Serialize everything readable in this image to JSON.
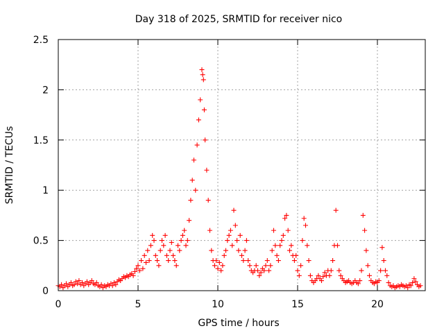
{
  "chart_data": {
    "type": "scatter",
    "title": "Day 318 of 2025, SRMTID for receiver nico",
    "xlabel": "GPS time / hours",
    "ylabel": "SRMTID / TECUs",
    "xlim": [
      0,
      23
    ],
    "ylim": [
      0,
      2.5
    ],
    "x_ticks": [
      0,
      5,
      10,
      15,
      20
    ],
    "x_tick_labels": [
      "0",
      "5",
      "10",
      "15",
      "20"
    ],
    "y_ticks": [
      0,
      0.5,
      1,
      1.5,
      2,
      2.5
    ],
    "y_tick_labels": [
      "0",
      "0.5",
      "1",
      "1.5",
      "2",
      "2.5"
    ],
    "grid": true,
    "marker": "+",
    "colors": {
      "series": "#ff0000",
      "grid": "#a0a0a0",
      "frame": "#000000"
    },
    "series": [
      {
        "name": "SRMTID",
        "points": [
          [
            0.0,
            0.05
          ],
          [
            0.1,
            0.04
          ],
          [
            0.2,
            0.06
          ],
          [
            0.3,
            0.03
          ],
          [
            0.4,
            0.05
          ],
          [
            0.5,
            0.07
          ],
          [
            0.6,
            0.04
          ],
          [
            0.7,
            0.06
          ],
          [
            0.8,
            0.08
          ],
          [
            0.9,
            0.05
          ],
          [
            1.0,
            0.06
          ],
          [
            1.1,
            0.09
          ],
          [
            1.2,
            0.07
          ],
          [
            1.3,
            0.1
          ],
          [
            1.4,
            0.06
          ],
          [
            1.5,
            0.08
          ],
          [
            1.6,
            0.05
          ],
          [
            1.7,
            0.07
          ],
          [
            1.8,
            0.09
          ],
          [
            1.9,
            0.06
          ],
          [
            2.0,
            0.08
          ],
          [
            2.1,
            0.1
          ],
          [
            2.2,
            0.07
          ],
          [
            2.3,
            0.06
          ],
          [
            2.4,
            0.08
          ],
          [
            2.5,
            0.05
          ],
          [
            2.6,
            0.04
          ],
          [
            2.7,
            0.06
          ],
          [
            2.8,
            0.03
          ],
          [
            2.9,
            0.05
          ],
          [
            3.0,
            0.04
          ],
          [
            3.1,
            0.06
          ],
          [
            3.2,
            0.05
          ],
          [
            3.3,
            0.07
          ],
          [
            3.4,
            0.05
          ],
          [
            3.5,
            0.08
          ],
          [
            3.6,
            0.06
          ],
          [
            3.7,
            0.09
          ],
          [
            3.8,
            0.11
          ],
          [
            3.9,
            0.1
          ],
          [
            4.0,
            0.12
          ],
          [
            4.1,
            0.14
          ],
          [
            4.2,
            0.13
          ],
          [
            4.3,
            0.15
          ],
          [
            4.4,
            0.14
          ],
          [
            4.5,
            0.16
          ],
          [
            4.6,
            0.17
          ],
          [
            4.7,
            0.15
          ],
          [
            4.8,
            0.19
          ],
          [
            4.9,
            0.22
          ],
          [
            5.0,
            0.25
          ],
          [
            5.1,
            0.2
          ],
          [
            5.2,
            0.3
          ],
          [
            5.3,
            0.22
          ],
          [
            5.4,
            0.35
          ],
          [
            5.5,
            0.28
          ],
          [
            5.6,
            0.4
          ],
          [
            5.7,
            0.3
          ],
          [
            5.8,
            0.45
          ],
          [
            5.9,
            0.55
          ],
          [
            6.0,
            0.5
          ],
          [
            6.1,
            0.35
          ],
          [
            6.2,
            0.3
          ],
          [
            6.3,
            0.25
          ],
          [
            6.4,
            0.4
          ],
          [
            6.5,
            0.5
          ],
          [
            6.6,
            0.45
          ],
          [
            6.7,
            0.55
          ],
          [
            6.8,
            0.35
          ],
          [
            6.9,
            0.3
          ],
          [
            7.0,
            0.4
          ],
          [
            7.1,
            0.48
          ],
          [
            7.2,
            0.35
          ],
          [
            7.3,
            0.3
          ],
          [
            7.4,
            0.25
          ],
          [
            7.5,
            0.45
          ],
          [
            7.6,
            0.4
          ],
          [
            7.7,
            0.5
          ],
          [
            7.8,
            0.55
          ],
          [
            7.9,
            0.6
          ],
          [
            8.0,
            0.45
          ],
          [
            8.1,
            0.5
          ],
          [
            8.2,
            0.7
          ],
          [
            8.3,
            0.9
          ],
          [
            8.4,
            1.1
          ],
          [
            8.5,
            1.3
          ],
          [
            8.6,
            1.0
          ],
          [
            8.7,
            1.45
          ],
          [
            8.8,
            1.7
          ],
          [
            8.9,
            1.9
          ],
          [
            9.0,
            2.2
          ],
          [
            9.05,
            2.15
          ],
          [
            9.1,
            2.1
          ],
          [
            9.15,
            1.8
          ],
          [
            9.2,
            1.5
          ],
          [
            9.3,
            1.2
          ],
          [
            9.4,
            0.9
          ],
          [
            9.5,
            0.6
          ],
          [
            9.6,
            0.4
          ],
          [
            9.7,
            0.3
          ],
          [
            9.8,
            0.25
          ],
          [
            9.9,
            0.3
          ],
          [
            10.0,
            0.22
          ],
          [
            10.1,
            0.28
          ],
          [
            10.2,
            0.2
          ],
          [
            10.3,
            0.25
          ],
          [
            10.4,
            0.35
          ],
          [
            10.5,
            0.4
          ],
          [
            10.6,
            0.5
          ],
          [
            10.7,
            0.55
          ],
          [
            10.8,
            0.6
          ],
          [
            10.9,
            0.45
          ],
          [
            11.0,
            0.8
          ],
          [
            11.1,
            0.65
          ],
          [
            11.2,
            0.5
          ],
          [
            11.3,
            0.4
          ],
          [
            11.4,
            0.55
          ],
          [
            11.5,
            0.35
          ],
          [
            11.6,
            0.3
          ],
          [
            11.7,
            0.4
          ],
          [
            11.8,
            0.5
          ],
          [
            11.9,
            0.3
          ],
          [
            12.0,
            0.25
          ],
          [
            12.1,
            0.2
          ],
          [
            12.2,
            0.18
          ],
          [
            12.3,
            0.2
          ],
          [
            12.4,
            0.25
          ],
          [
            12.5,
            0.2
          ],
          [
            12.6,
            0.15
          ],
          [
            12.7,
            0.18
          ],
          [
            12.8,
            0.22
          ],
          [
            12.9,
            0.2
          ],
          [
            13.0,
            0.25
          ],
          [
            13.1,
            0.3
          ],
          [
            13.2,
            0.2
          ],
          [
            13.3,
            0.25
          ],
          [
            13.4,
            0.4
          ],
          [
            13.5,
            0.6
          ],
          [
            13.6,
            0.45
          ],
          [
            13.7,
            0.35
          ],
          [
            13.8,
            0.3
          ],
          [
            13.9,
            0.45
          ],
          [
            14.0,
            0.5
          ],
          [
            14.1,
            0.55
          ],
          [
            14.2,
            0.72
          ],
          [
            14.3,
            0.75
          ],
          [
            14.4,
            0.6
          ],
          [
            14.5,
            0.4
          ],
          [
            14.6,
            0.45
          ],
          [
            14.7,
            0.35
          ],
          [
            14.8,
            0.3
          ],
          [
            14.9,
            0.35
          ],
          [
            15.0,
            0.2
          ],
          [
            15.1,
            0.15
          ],
          [
            15.2,
            0.25
          ],
          [
            15.3,
            0.5
          ],
          [
            15.4,
            0.72
          ],
          [
            15.5,
            0.65
          ],
          [
            15.6,
            0.45
          ],
          [
            15.7,
            0.3
          ],
          [
            15.8,
            0.15
          ],
          [
            15.9,
            0.1
          ],
          [
            16.0,
            0.08
          ],
          [
            16.1,
            0.1
          ],
          [
            16.2,
            0.12
          ],
          [
            16.3,
            0.15
          ],
          [
            16.4,
            0.12
          ],
          [
            16.5,
            0.1
          ],
          [
            16.6,
            0.14
          ],
          [
            16.7,
            0.18
          ],
          [
            16.8,
            0.15
          ],
          [
            16.9,
            0.2
          ],
          [
            17.0,
            0.15
          ],
          [
            17.1,
            0.2
          ],
          [
            17.2,
            0.3
          ],
          [
            17.3,
            0.45
          ],
          [
            17.4,
            0.8
          ],
          [
            17.5,
            0.45
          ],
          [
            17.6,
            0.2
          ],
          [
            17.7,
            0.15
          ],
          [
            17.8,
            0.12
          ],
          [
            17.9,
            0.1
          ],
          [
            18.0,
            0.08
          ],
          [
            18.1,
            0.09
          ],
          [
            18.2,
            0.1
          ],
          [
            18.3,
            0.08
          ],
          [
            18.4,
            0.07
          ],
          [
            18.5,
            0.08
          ],
          [
            18.6,
            0.1
          ],
          [
            18.7,
            0.08
          ],
          [
            18.8,
            0.07
          ],
          [
            18.9,
            0.1
          ],
          [
            19.0,
            0.2
          ],
          [
            19.1,
            0.75
          ],
          [
            19.2,
            0.6
          ],
          [
            19.3,
            0.4
          ],
          [
            19.4,
            0.25
          ],
          [
            19.5,
            0.15
          ],
          [
            19.6,
            0.1
          ],
          [
            19.7,
            0.08
          ],
          [
            19.8,
            0.07
          ],
          [
            19.9,
            0.09
          ],
          [
            20.0,
            0.08
          ],
          [
            20.1,
            0.1
          ],
          [
            20.2,
            0.2
          ],
          [
            20.3,
            0.43
          ],
          [
            20.4,
            0.3
          ],
          [
            20.5,
            0.2
          ],
          [
            20.6,
            0.15
          ],
          [
            20.7,
            0.08
          ],
          [
            20.8,
            0.05
          ],
          [
            20.9,
            0.04
          ],
          [
            21.0,
            0.05
          ],
          [
            21.1,
            0.03
          ],
          [
            21.2,
            0.04
          ],
          [
            21.3,
            0.05
          ],
          [
            21.4,
            0.04
          ],
          [
            21.5,
            0.06
          ],
          [
            21.6,
            0.05
          ],
          [
            21.7,
            0.04
          ],
          [
            21.8,
            0.05
          ],
          [
            21.9,
            0.03
          ],
          [
            22.0,
            0.06
          ],
          [
            22.1,
            0.05
          ],
          [
            22.2,
            0.08
          ],
          [
            22.3,
            0.12
          ],
          [
            22.4,
            0.09
          ],
          [
            22.5,
            0.06
          ],
          [
            22.6,
            0.04
          ],
          [
            22.7,
            0.05
          ]
        ]
      }
    ]
  }
}
